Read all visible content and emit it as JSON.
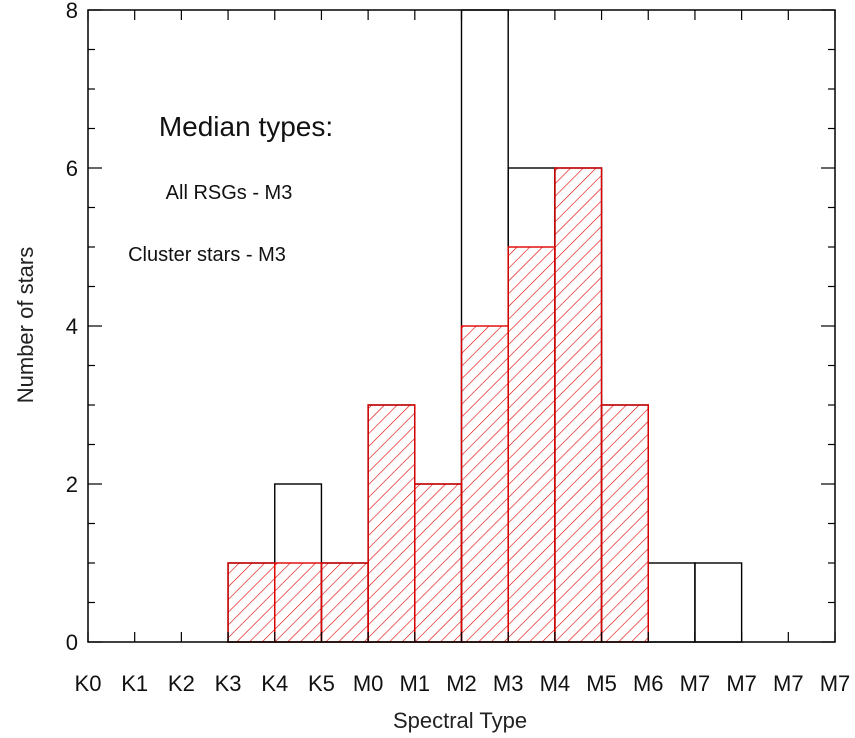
{
  "chart_data": {
    "type": "bar",
    "histogram": true,
    "xlabel": "Spectral Type",
    "ylabel": "Number of stars",
    "xtick_labels": [
      "K0",
      "K1",
      "K2",
      "K3",
      "K4",
      "K5",
      "M0",
      "M1",
      "M2",
      "M3",
      "M4",
      "M5",
      "M6",
      "M7",
      "M7",
      "M7",
      "M7"
    ],
    "ylim": [
      0,
      8
    ],
    "yticks": [
      0,
      2,
      4,
      6,
      8
    ],
    "series": [
      {
        "style": "outline",
        "color": "#000000",
        "values": [
          0,
          0,
          0,
          1,
          2,
          1,
          3,
          2,
          8,
          6,
          6,
          3,
          1,
          1,
          0,
          0
        ]
      },
      {
        "style": "hatched",
        "color": "#e00000",
        "values": [
          0,
          0,
          0,
          1,
          1,
          1,
          3,
          2,
          4,
          5,
          6,
          3,
          0,
          0,
          0,
          0
        ]
      }
    ],
    "annotations": {
      "title": "Median types:",
      "lines": [
        "All RSGs -  M3",
        "Cluster stars -  M3"
      ]
    }
  }
}
